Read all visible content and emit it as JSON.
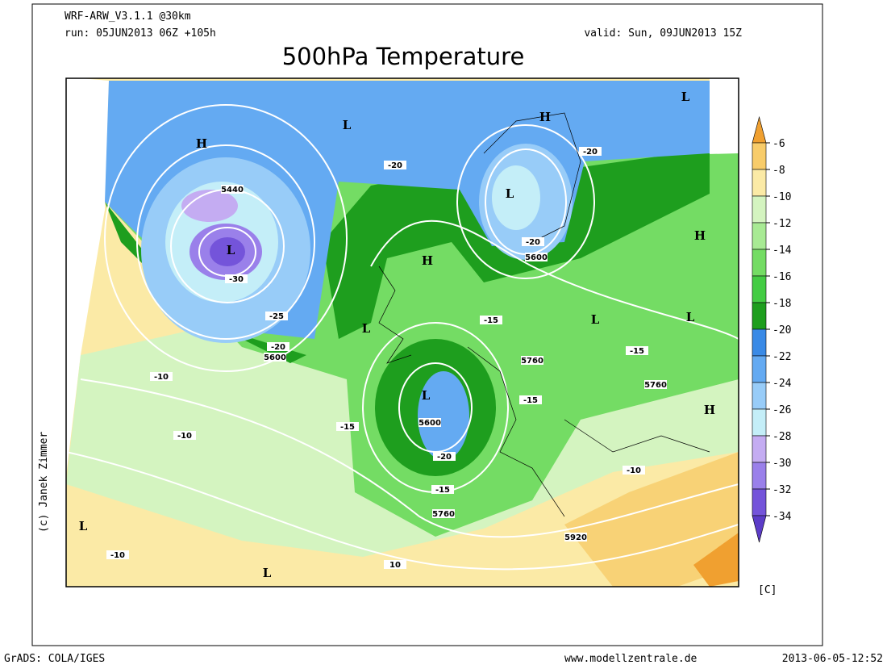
{
  "header": {
    "model": "WRF-ARW_V3.1.1 @30km",
    "run": "run: 05JUN2013 06Z +105h",
    "valid": "valid: Sun, 09JUN2013 15Z",
    "title": "500hPa Temperature"
  },
  "map": {
    "systems": [
      "H",
      "L",
      "H",
      "L",
      "L",
      "H",
      "H",
      "L",
      "L",
      "L",
      "L",
      "L",
      "H",
      "L",
      "L"
    ],
    "contour_labels": [
      5440,
      -30,
      -25,
      -20,
      5600,
      -20,
      -20,
      -20,
      5600,
      -15,
      -15,
      5760,
      5760,
      -10,
      -15,
      -15,
      5600,
      -10,
      -20,
      -15,
      5760,
      -10,
      5920,
      -10,
      10
    ]
  },
  "colorbar": {
    "ticks": [
      -6,
      -8,
      -10,
      -12,
      -14,
      -16,
      -18,
      -20,
      -22,
      -24,
      -26,
      -28,
      -30,
      -32,
      -34
    ],
    "colors": [
      "#f0a030",
      "#f8cc6a",
      "#fbeaa6",
      "#d4f4c0",
      "#a8ea94",
      "#74dc64",
      "#44cc44",
      "#1e9e1e",
      "#3a8ae6",
      "#64aaf2",
      "#98ccf8",
      "#c4eef8",
      "#c4acf2",
      "#9a80ea",
      "#7454da",
      "#5c3cc8"
    ],
    "unit": "[C]"
  },
  "credit": "(c) Janek Zimmer",
  "footer": {
    "left": "GrADS: COLA/IGES",
    "center": "www.modellzentrale.de",
    "right": "2013-06-05-12:52"
  }
}
